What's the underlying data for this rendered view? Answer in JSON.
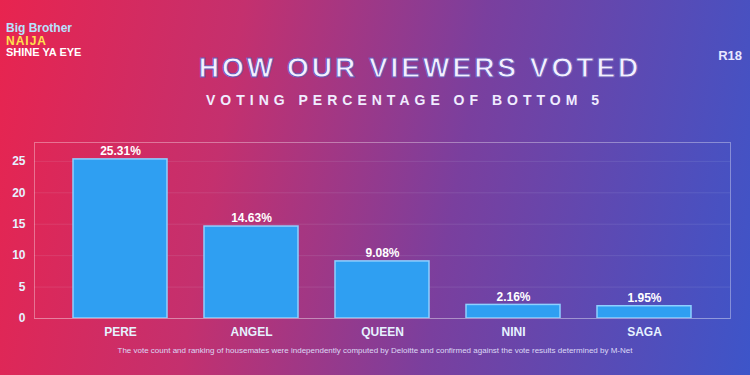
{
  "chart_data": {
    "type": "bar",
    "title": "HOW OUR VIEWERS VOTED",
    "subtitle": "VOTING PERCENTAGE OF BOTTOM 5",
    "caption": "The vote count and ranking of housemates were independently computed by Deloitte and confirmed against the vote results determined by M-Net",
    "annotations": [
      "Big Brother",
      "NAIJA",
      "SHINE YA EYE",
      "R18"
    ],
    "categories": [
      "PERE",
      "ANGEL",
      "QUEEN",
      "NINI",
      "SAGA"
    ],
    "values": [
      25.31,
      14.63,
      9.08,
      2.16,
      1.95
    ],
    "value_labels": [
      "25.31%",
      "14.63%",
      "9.08%",
      "2.16%",
      "1.95%"
    ],
    "data_labels": true,
    "color": "#2f9ff2",
    "ylim": [
      0,
      28
    ],
    "yticks": [
      0,
      5,
      10,
      15,
      20,
      25
    ],
    "grid": true
  }
}
